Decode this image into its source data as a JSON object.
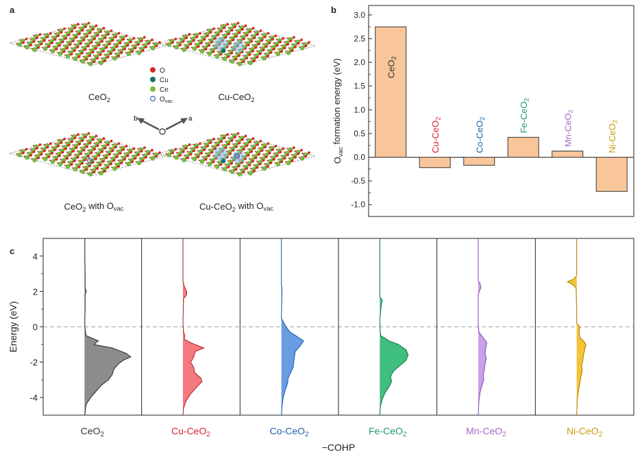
{
  "panel_labels": {
    "a": "a",
    "b": "b",
    "c": "c"
  },
  "panel_a": {
    "structures": [
      {
        "name": "CeO",
        "sub": "2",
        "suffix": "",
        "suffix_sub": "",
        "has_cu": false,
        "has_vac": false
      },
      {
        "name": "Cu-CeO",
        "sub": "2",
        "suffix": "",
        "suffix_sub": "",
        "has_cu": true,
        "has_vac": false
      },
      {
        "name": "CeO",
        "sub": "2",
        "suffix": " with O",
        "suffix_sub": "vac",
        "has_cu": false,
        "has_vac": true
      },
      {
        "name": "Cu-CeO",
        "sub": "2",
        "suffix": " with O",
        "suffix_sub": "vac",
        "has_cu": true,
        "has_vac": true
      }
    ],
    "legend": [
      {
        "symbol": "O",
        "sub": "",
        "color": "#d42a22",
        "kind": "filled"
      },
      {
        "symbol": "Cu",
        "sub": "",
        "color": "#16706a",
        "kind": "filled"
      },
      {
        "symbol": "Ce",
        "sub": "",
        "color": "#76bf3f",
        "kind": "filled"
      },
      {
        "symbol": "O",
        "sub": "vac",
        "color": "#3a63b8",
        "kind": "open"
      }
    ],
    "axes_labels": {
      "b": "b",
      "a": "a"
    },
    "colors": {
      "O": "#d42a22",
      "Ce": "#76bf3f",
      "Cu": "#16706a",
      "vac": "#3a63b8",
      "cu_glow": "#7fc3e8"
    }
  },
  "chart_data": [
    {
      "type": "bar",
      "panel": "b",
      "categories": [
        {
          "base": "CeO",
          "sub": "2",
          "color": "#333333"
        },
        {
          "base": "Cu-CeO",
          "sub": "2",
          "color": "#d9232e"
        },
        {
          "base": "Co-CeO",
          "sub": "2",
          "color": "#1f5fae"
        },
        {
          "base": "Fe-CeO",
          "sub": "2",
          "color": "#1e9b62"
        },
        {
          "base": "Mn-CeO",
          "sub": "2",
          "color": "#a865c9"
        },
        {
          "base": "Ni-CeO",
          "sub": "2",
          "color": "#c79b0a"
        }
      ],
      "values": [
        2.75,
        -0.22,
        -0.17,
        0.42,
        0.13,
        -0.72
      ],
      "ylabel": {
        "pre": "O",
        "sub": "vac",
        "post": " formation energy (eV)"
      },
      "ylim": [
        -1.25,
        3.2
      ],
      "yticks": [
        "3.0",
        "2.5",
        "2.0",
        "1.5",
        "1.0",
        "0.5",
        "0.0",
        "-0.5",
        "-1.0"
      ],
      "ytick_values": [
        3.0,
        2.5,
        2.0,
        1.5,
        1.0,
        0.5,
        0.0,
        -0.5,
        -1.0
      ],
      "bar_color": "#f9c69b",
      "bar_edge": "#333333"
    },
    {
      "type": "area",
      "panel": "c",
      "ylabel": "Energy (eV)",
      "xlabel": "−COHP",
      "ylim": [
        -5,
        5
      ],
      "yticks": [
        "4",
        "2",
        "0",
        "-2",
        "-4"
      ],
      "ytick_values": [
        4,
        2,
        0,
        -2,
        -4
      ],
      "fermi_level": 0,
      "series": [
        {
          "base": "CeO",
          "sub": "2",
          "fill": "#8c8c8c",
          "line": "#333333",
          "label_color": "#333333",
          "cohp": [
            [
              5,
              0.01
            ],
            [
              4.5,
              0.01
            ],
            [
              4,
              0.01
            ],
            [
              3,
              0.02
            ],
            [
              2.2,
              0.02
            ],
            [
              2.0,
              0.06
            ],
            [
              1.8,
              0.02
            ],
            [
              1.0,
              0.02
            ],
            [
              0.5,
              0.01
            ],
            [
              0,
              0.01
            ],
            [
              -0.5,
              0.05
            ],
            [
              -0.8,
              0.45
            ],
            [
              -1.0,
              0.3
            ],
            [
              -1.2,
              0.9
            ],
            [
              -1.5,
              1.35
            ],
            [
              -1.7,
              1.5
            ],
            [
              -1.9,
              1.25
            ],
            [
              -2.1,
              1.1
            ],
            [
              -2.4,
              0.95
            ],
            [
              -2.7,
              0.9
            ],
            [
              -3.0,
              0.78
            ],
            [
              -3.3,
              0.55
            ],
            [
              -3.7,
              0.35
            ],
            [
              -4.0,
              0.2
            ],
            [
              -4.4,
              0.05
            ],
            [
              -5,
              0.01
            ]
          ]
        },
        {
          "base": "Cu-CeO",
          "sub": "2",
          "fill": "#f47a7d",
          "line": "#b3272d",
          "label_color": "#d9232e",
          "cohp": [
            [
              5,
              0
            ],
            [
              2.6,
              0
            ],
            [
              2.3,
              0.04
            ],
            [
              2.0,
              0.12
            ],
            [
              1.8,
              0.12
            ],
            [
              1.6,
              0.02
            ],
            [
              0.2,
              0.0
            ],
            [
              -0.3,
              0.02
            ],
            [
              -0.5,
              0.06
            ],
            [
              -0.7,
              0.04
            ],
            [
              -0.9,
              0.25
            ],
            [
              -1.2,
              0.68
            ],
            [
              -1.4,
              0.4
            ],
            [
              -1.7,
              0.35
            ],
            [
              -2.0,
              0.25
            ],
            [
              -2.3,
              0.35
            ],
            [
              -2.6,
              0.38
            ],
            [
              -2.9,
              0.58
            ],
            [
              -3.1,
              0.62
            ],
            [
              -3.4,
              0.45
            ],
            [
              -3.8,
              0.25
            ],
            [
              -4.2,
              0.1
            ],
            [
              -4.6,
              0.02
            ],
            [
              -5,
              0
            ]
          ]
        },
        {
          "base": "Co-CeO",
          "sub": "2",
          "fill": "#6a9ce6",
          "line": "#1f5fae",
          "label_color": "#1f5fae",
          "cohp": [
            [
              5,
              0
            ],
            [
              2.4,
              0
            ],
            [
              2.2,
              0.02
            ],
            [
              0.5,
              0
            ],
            [
              0.15,
              0.1
            ],
            [
              0.0,
              0.15
            ],
            [
              -0.3,
              0.28
            ],
            [
              -0.6,
              0.55
            ],
            [
              -0.8,
              0.72
            ],
            [
              -1.1,
              0.6
            ],
            [
              -1.4,
              0.45
            ],
            [
              -1.7,
              0.42
            ],
            [
              -2.0,
              0.4
            ],
            [
              -2.3,
              0.38
            ],
            [
              -2.6,
              0.3
            ],
            [
              -2.9,
              0.22
            ],
            [
              -3.2,
              0.2
            ],
            [
              -3.6,
              0.12
            ],
            [
              -4.0,
              0.06
            ],
            [
              -4.5,
              0.02
            ],
            [
              -5,
              0
            ]
          ]
        },
        {
          "base": "Fe-CeO",
          "sub": "2",
          "fill": "#3fbf7f",
          "line": "#1b7a4b",
          "label_color": "#1e9b62",
          "cohp": [
            [
              5,
              0
            ],
            [
              1.7,
              0
            ],
            [
              1.5,
              0.08
            ],
            [
              1.3,
              0.05
            ],
            [
              0.4,
              0
            ],
            [
              -0.2,
              0.01
            ],
            [
              -0.5,
              0.03
            ],
            [
              -0.8,
              0.3
            ],
            [
              -1.0,
              0.6
            ],
            [
              -1.3,
              0.85
            ],
            [
              -1.6,
              0.92
            ],
            [
              -1.9,
              0.85
            ],
            [
              -2.2,
              0.65
            ],
            [
              -2.5,
              0.45
            ],
            [
              -2.8,
              0.35
            ],
            [
              -3.1,
              0.38
            ],
            [
              -3.4,
              0.3
            ],
            [
              -3.7,
              0.18
            ],
            [
              -4.1,
              0.08
            ],
            [
              -4.5,
              0.02
            ],
            [
              -5,
              0
            ]
          ]
        },
        {
          "base": "Mn-CeO",
          "sub": "2",
          "fill": "#c9a0ec",
          "line": "#8a4fb6",
          "label_color": "#a865c9",
          "cohp": [
            [
              5,
              0
            ],
            [
              2.6,
              0
            ],
            [
              2.45,
              0.06
            ],
            [
              2.2,
              0.08
            ],
            [
              2.0,
              0.03
            ],
            [
              1.8,
              0
            ],
            [
              0.2,
              0
            ],
            [
              -0.3,
              0.02
            ],
            [
              -0.6,
              0.15
            ],
            [
              -0.9,
              0.28
            ],
            [
              -1.2,
              0.24
            ],
            [
              -1.5,
              0.22
            ],
            [
              -1.8,
              0.26
            ],
            [
              -2.1,
              0.22
            ],
            [
              -2.4,
              0.2
            ],
            [
              -2.7,
              0.16
            ],
            [
              -3.0,
              0.18
            ],
            [
              -3.3,
              0.12
            ],
            [
              -3.7,
              0.06
            ],
            [
              -4.2,
              0.02
            ],
            [
              -5,
              0
            ]
          ]
        },
        {
          "base": "Ni-CeO",
          "sub": "2",
          "fill": "#f4c33a",
          "line": "#b08400",
          "label_color": "#c79b0a",
          "cohp": [
            [
              5,
              0
            ],
            [
              2.9,
              0
            ],
            [
              2.7,
              -0.1
            ],
            [
              2.55,
              -0.3
            ],
            [
              2.4,
              -0.15
            ],
            [
              2.2,
              -0.02
            ],
            [
              1.0,
              0
            ],
            [
              0.2,
              0
            ],
            [
              0.0,
              0.1
            ],
            [
              -0.3,
              0.08
            ],
            [
              -0.6,
              0.1
            ],
            [
              -0.8,
              0.22
            ],
            [
              -1.0,
              0.3
            ],
            [
              -1.3,
              0.26
            ],
            [
              -1.6,
              0.22
            ],
            [
              -1.9,
              0.2
            ],
            [
              -2.2,
              0.16
            ],
            [
              -2.5,
              0.18
            ],
            [
              -2.8,
              0.14
            ],
            [
              -3.2,
              0.1
            ],
            [
              -3.6,
              0.06
            ],
            [
              -4.1,
              0.02
            ],
            [
              -5,
              0
            ]
          ]
        }
      ]
    }
  ]
}
